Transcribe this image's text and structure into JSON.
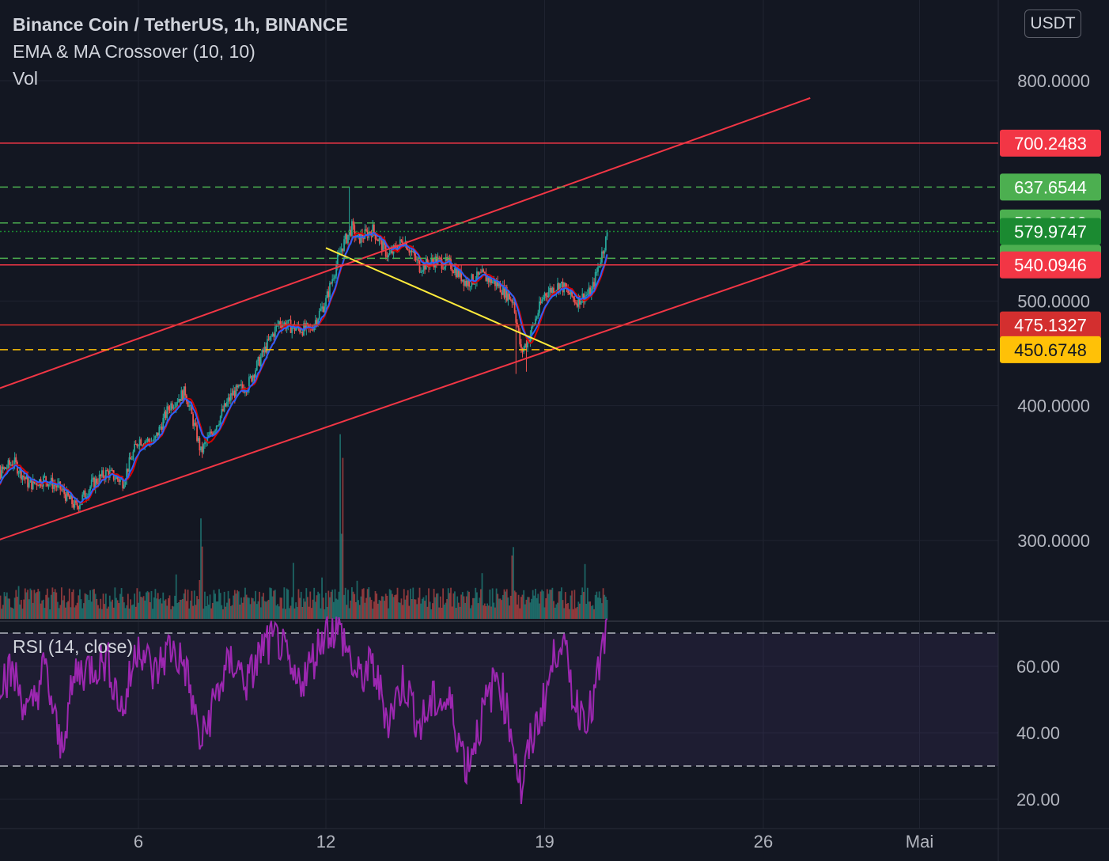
{
  "header": {
    "title": "Binance Coin / TetherUS, 1h, BINANCE",
    "indicator": "EMA & MA Crossover (10, 10)",
    "volume": "Vol",
    "rsi": "RSI (14, close)",
    "currency": "USDT"
  },
  "colors": {
    "background": "#131722",
    "grid": "#1f2330",
    "up_candle": "#26a69a",
    "down_candle": "#ef5350",
    "ema": "#2962ff",
    "ma": "#d50000",
    "resistance": "#f23645",
    "green_level": "#4caf50",
    "yellow_level": "#ffc107",
    "rsi": "#9c27b0"
  },
  "chart_data": [
    {
      "type": "candlestick",
      "title": "Binance Coin / TetherUS, 1h, BINANCE",
      "scale": "log",
      "ylim": [
        265,
        930
      ],
      "x_ticks": [
        "6",
        "12",
        "19",
        "26",
        "Mai"
      ],
      "y_ticks": [
        "300.0000",
        "400.0000",
        "500.0000",
        "800.0000"
      ],
      "close_path": [
        [
          "Apr 1 00:00",
          320
        ],
        [
          "Apr 1 12:00",
          345
        ],
        [
          "Apr 2 00:00",
          355
        ],
        [
          "Apr 2 12:00",
          338
        ],
        [
          "Apr 3 00:00",
          342
        ],
        [
          "Apr 3 12:00",
          335
        ],
        [
          "Apr 4 00:00",
          322
        ],
        [
          "Apr 4 12:00",
          338
        ],
        [
          "Apr 5 00:00",
          347
        ],
        [
          "Apr 5 12:00",
          340
        ],
        [
          "Apr 6 00:00",
          372
        ],
        [
          "Apr 6 12:00",
          370
        ],
        [
          "Apr 7 00:00",
          400
        ],
        [
          "Apr 7 12:00",
          412
        ],
        [
          "Apr 8 00:00",
          362
        ],
        [
          "Apr 8 12:00",
          385
        ],
        [
          "Apr 9 00:00",
          410
        ],
        [
          "Apr 9 12:00",
          418
        ],
        [
          "Apr 10 00:00",
          448
        ],
        [
          "Apr 10 12:00",
          478
        ],
        [
          "Apr 11 00:00",
          472
        ],
        [
          "Apr 11 12:00",
          470
        ],
        [
          "Apr 12 00:00",
          500
        ],
        [
          "Apr 12 12:00",
          560
        ],
        [
          "Apr 12 20:00",
          585
        ],
        [
          "Apr 13 00:00",
          570
        ],
        [
          "Apr 13 12:00",
          582
        ],
        [
          "Apr 14 00:00",
          550
        ],
        [
          "Apr 14 12:00",
          570
        ],
        [
          "Apr 15 00:00",
          538
        ],
        [
          "Apr 15 12:00",
          545
        ],
        [
          "Apr 16 00:00",
          540
        ],
        [
          "Apr 16 12:00",
          520
        ],
        [
          "Apr 17 00:00",
          528
        ],
        [
          "Apr 17 12:00",
          518
        ],
        [
          "Apr 18 00:00",
          500
        ],
        [
          "Apr 18 06:00",
          448
        ],
        [
          "Apr 18 12:00",
          462
        ],
        [
          "Apr 19 00:00",
          508
        ],
        [
          "Apr 19 12:00",
          518
        ],
        [
          "Apr 20 00:00",
          500
        ],
        [
          "Apr 20 12:00",
          510
        ],
        [
          "Apr 21 00:00",
          575
        ]
      ],
      "ema_period": 10,
      "ma_period": 10,
      "vol_spikes": [
        [
          "Apr 8 00:00",
          4.0
        ],
        [
          "Apr 12 12:00",
          6.0
        ],
        [
          "Apr 18 00:00",
          2.5
        ]
      ],
      "horizontal_levels": [
        {
          "value": 700.2483,
          "label": "700.2483",
          "style": "solid",
          "color": "#f23645"
        },
        {
          "value": 637.6544,
          "label": "637.6544",
          "style": "dashed",
          "color": "#4caf50"
        },
        {
          "value": 590.6698,
          "label": "590.6698",
          "style": "dashed",
          "color": "#4caf50"
        },
        {
          "value": 579.9747,
          "label": "579.9747",
          "style": "dotted",
          "color": "#1b8a31",
          "current": true
        },
        {
          "value": 547.7852,
          "label": "547.7852",
          "style": "dashed",
          "color": "#4caf50"
        },
        {
          "value": 540.0946,
          "label": "540.0946",
          "style": "solid",
          "color": "#f23645"
        },
        {
          "value": 475.1327,
          "label": "475.1327",
          "style": "solid",
          "color": "#d32f2f"
        },
        {
          "value": 450.6748,
          "label": "450.6748",
          "style": "dashed",
          "color": "#ffc107"
        }
      ],
      "trendlines": [
        {
          "color": "#f23645",
          "from": [
            "Mar 31 00:00",
            400
          ],
          "to": [
            "Apr 27 12:00",
            771
          ]
        },
        {
          "color": "#f23645",
          "from": [
            "Mar 31 00:00",
            290
          ],
          "to": [
            "Apr 27 12:00",
            545
          ]
        },
        {
          "color": "#ffeb3b",
          "from": [
            "Apr 12 00:00",
            560
          ],
          "to": [
            "Apr 19 12:00",
            450
          ]
        }
      ]
    },
    {
      "type": "line",
      "title": "RSI (14, close)",
      "ylim": [
        16,
        76
      ],
      "y_ticks": [
        "20.00",
        "40.00",
        "60.00"
      ],
      "bands": [
        30,
        70
      ],
      "path": [
        [
          "Apr 1 00:00",
          55
        ],
        [
          "Apr 2 00:00",
          58
        ],
        [
          "Apr 2 12:00",
          45
        ],
        [
          "Apr 3 00:00",
          60
        ],
        [
          "Apr 3 12:00",
          35
        ],
        [
          "Apr 4 00:00",
          58
        ],
        [
          "Apr 5 00:00",
          62
        ],
        [
          "Apr 5 12:00",
          46
        ],
        [
          "Apr 6 00:00",
          68
        ],
        [
          "Apr 6 12:00",
          57
        ],
        [
          "Apr 7 00:00",
          66
        ],
        [
          "Apr 7 12:00",
          60
        ],
        [
          "Apr 8 00:00",
          36
        ],
        [
          "Apr 8 12:00",
          52
        ],
        [
          "Apr 9 00:00",
          62
        ],
        [
          "Apr 9 12:00",
          55
        ],
        [
          "Apr 10 00:00",
          66
        ],
        [
          "Apr 10 12:00",
          68
        ],
        [
          "Apr 11 00:00",
          54
        ],
        [
          "Apr 11 12:00",
          60
        ],
        [
          "Apr 12 00:00",
          72
        ],
        [
          "Apr 12 12:00",
          70
        ],
        [
          "Apr 13 00:00",
          56
        ],
        [
          "Apr 13 12:00",
          60
        ],
        [
          "Apr 14 00:00",
          44
        ],
        [
          "Apr 14 12:00",
          56
        ],
        [
          "Apr 15 00:00",
          42
        ],
        [
          "Apr 15 12:00",
          50
        ],
        [
          "Apr 16 00:00",
          48
        ],
        [
          "Apr 16 12:00",
          30
        ],
        [
          "Apr 17 00:00",
          45
        ],
        [
          "Apr 17 12:00",
          58
        ],
        [
          "Apr 18 00:00",
          38
        ],
        [
          "Apr 18 06:00",
          22
        ],
        [
          "Apr 18 12:00",
          35
        ],
        [
          "Apr 19 00:00",
          50
        ],
        [
          "Apr 19 12:00",
          70
        ],
        [
          "Apr 20 00:00",
          48
        ],
        [
          "Apr 20 12:00",
          46
        ],
        [
          "Apr 21 00:00",
          72
        ]
      ]
    }
  ]
}
